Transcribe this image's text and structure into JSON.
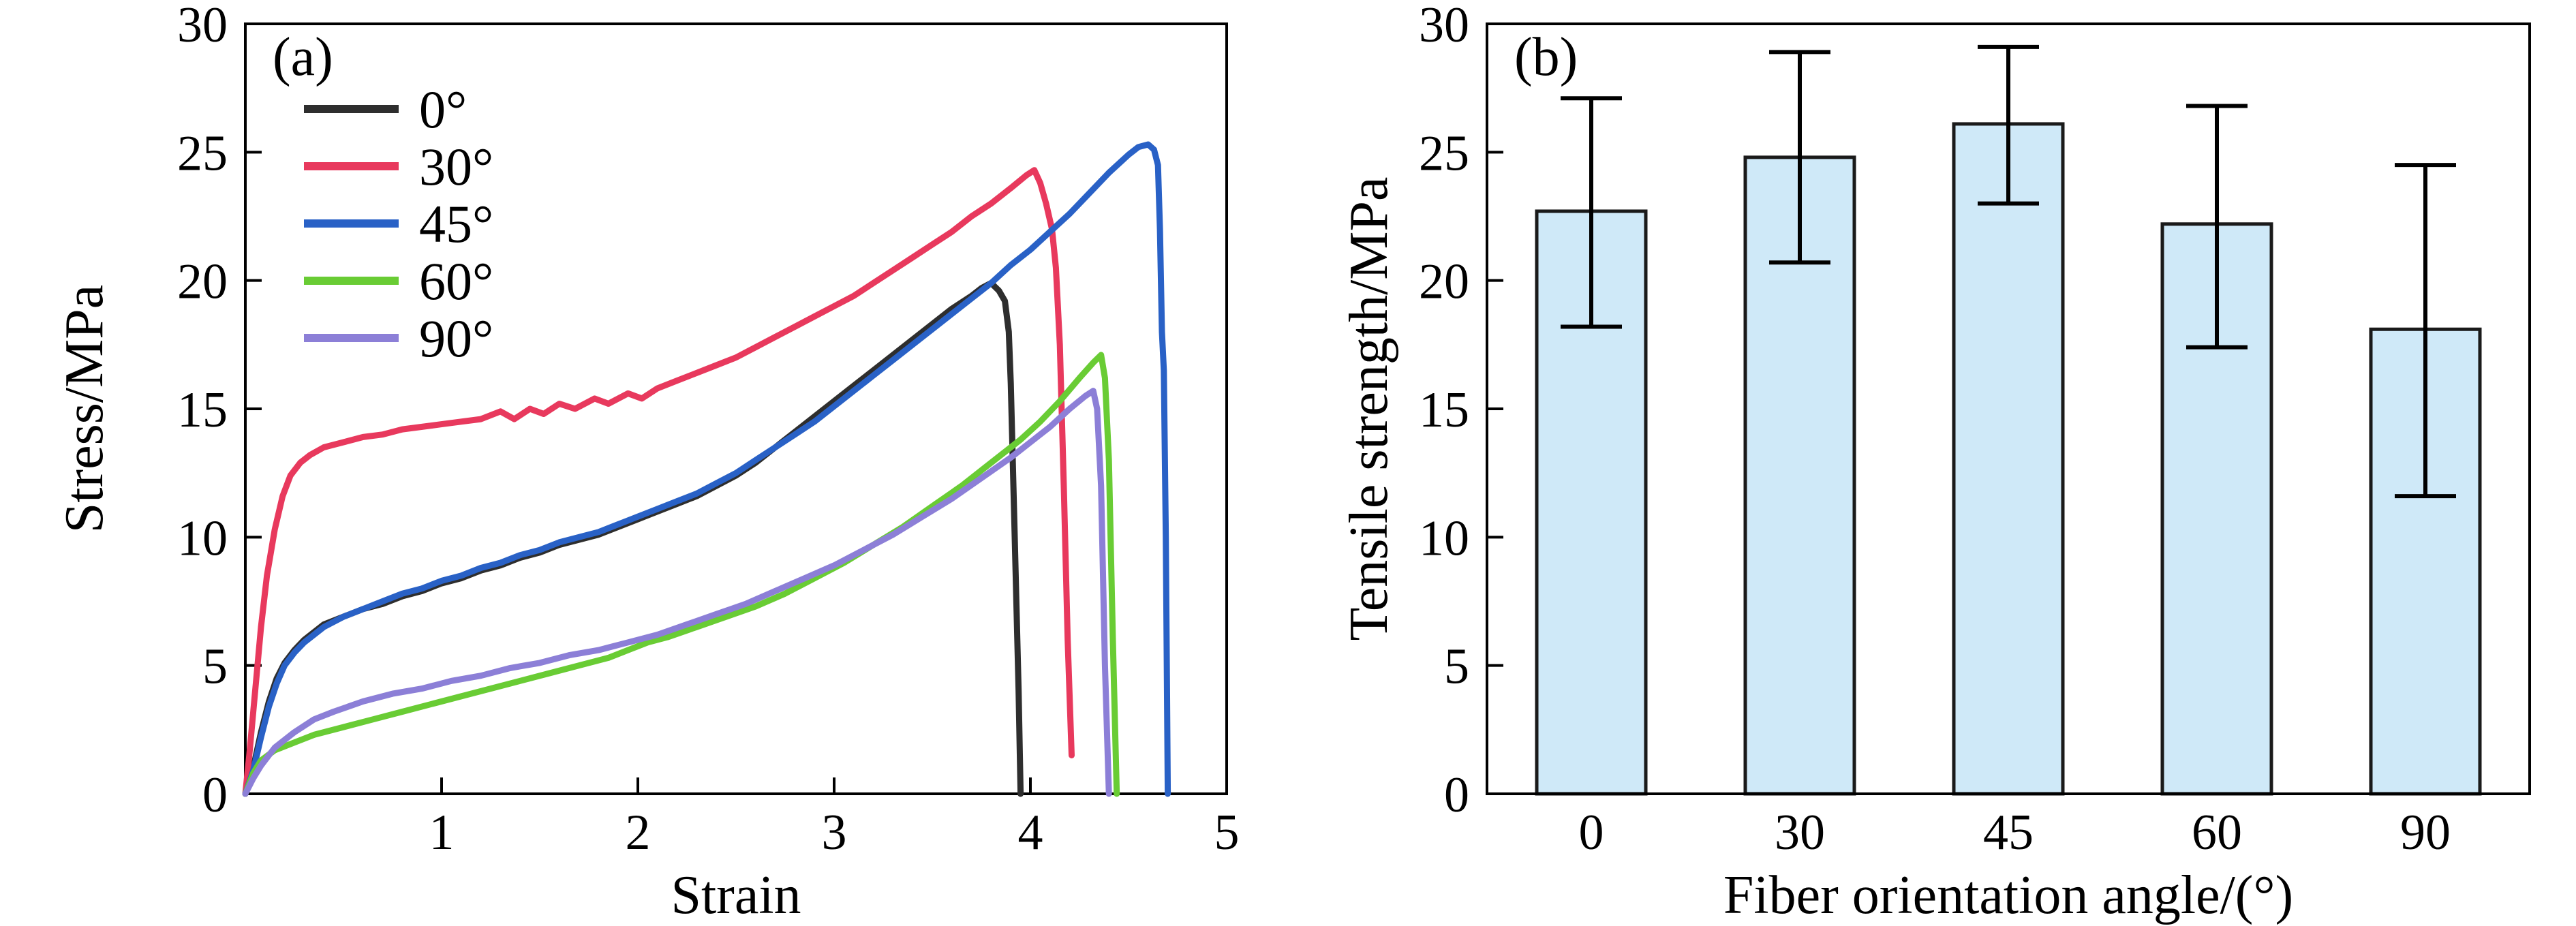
{
  "figure": {
    "background": "#ffffff",
    "frame_color": "#000000"
  },
  "chart_data": [
    {
      "type": "line",
      "panel_label": "(a)",
      "xlabel": "Strain",
      "ylabel": "Stress/MPa",
      "xlim": [
        0,
        5
      ],
      "ylim": [
        0,
        30
      ],
      "xticks": [
        1,
        2,
        3,
        4,
        5
      ],
      "yticks": [
        0,
        5,
        10,
        15,
        20,
        25,
        30
      ],
      "legend_position": "upper-left",
      "series": [
        {
          "name": "0°",
          "color": "#2e2e2e",
          "points": [
            [
              0,
              0
            ],
            [
              0.04,
              1.0
            ],
            [
              0.08,
              2.4
            ],
            [
              0.12,
              3.6
            ],
            [
              0.16,
              4.5
            ],
            [
              0.2,
              5.1
            ],
            [
              0.25,
              5.6
            ],
            [
              0.3,
              6.0
            ],
            [
              0.4,
              6.6
            ],
            [
              0.5,
              6.9
            ],
            [
              0.6,
              7.2
            ],
            [
              0.7,
              7.4
            ],
            [
              0.8,
              7.7
            ],
            [
              0.9,
              7.9
            ],
            [
              1.0,
              8.2
            ],
            [
              1.1,
              8.4
            ],
            [
              1.2,
              8.7
            ],
            [
              1.3,
              8.9
            ],
            [
              1.4,
              9.2
            ],
            [
              1.5,
              9.4
            ],
            [
              1.6,
              9.7
            ],
            [
              1.7,
              9.9
            ],
            [
              1.8,
              10.1
            ],
            [
              1.9,
              10.4
            ],
            [
              2.0,
              10.7
            ],
            [
              2.1,
              11.0
            ],
            [
              2.2,
              11.3
            ],
            [
              2.3,
              11.6
            ],
            [
              2.4,
              12.0
            ],
            [
              2.5,
              12.4
            ],
            [
              2.6,
              12.9
            ],
            [
              2.7,
              13.5
            ],
            [
              2.8,
              14.1
            ],
            [
              2.9,
              14.7
            ],
            [
              3.0,
              15.3
            ],
            [
              3.1,
              15.9
            ],
            [
              3.2,
              16.5
            ],
            [
              3.3,
              17.1
            ],
            [
              3.4,
              17.7
            ],
            [
              3.5,
              18.3
            ],
            [
              3.6,
              18.9
            ],
            [
              3.7,
              19.4
            ],
            [
              3.75,
              19.7
            ],
            [
              3.8,
              19.9
            ],
            [
              3.84,
              19.6
            ],
            [
              3.87,
              19.2
            ],
            [
              3.89,
              18.0
            ],
            [
              3.9,
              16.0
            ],
            [
              3.92,
              10.0
            ],
            [
              3.94,
              4.0
            ],
            [
              3.95,
              0
            ]
          ]
        },
        {
          "name": "30°",
          "color": "#e8395d",
          "points": [
            [
              0,
              0
            ],
            [
              0.02,
              1.5
            ],
            [
              0.05,
              4.0
            ],
            [
              0.08,
              6.5
            ],
            [
              0.11,
              8.5
            ],
            [
              0.15,
              10.3
            ],
            [
              0.19,
              11.6
            ],
            [
              0.23,
              12.4
            ],
            [
              0.28,
              12.9
            ],
            [
              0.33,
              13.2
            ],
            [
              0.4,
              13.5
            ],
            [
              0.5,
              13.7
            ],
            [
              0.6,
              13.9
            ],
            [
              0.7,
              14.0
            ],
            [
              0.8,
              14.2
            ],
            [
              0.9,
              14.3
            ],
            [
              1.0,
              14.4
            ],
            [
              1.1,
              14.5
            ],
            [
              1.2,
              14.6
            ],
            [
              1.3,
              14.9
            ],
            [
              1.37,
              14.6
            ],
            [
              1.45,
              15.0
            ],
            [
              1.52,
              14.8
            ],
            [
              1.6,
              15.2
            ],
            [
              1.68,
              15.0
            ],
            [
              1.78,
              15.4
            ],
            [
              1.85,
              15.2
            ],
            [
              1.95,
              15.6
            ],
            [
              2.02,
              15.4
            ],
            [
              2.1,
              15.8
            ],
            [
              2.2,
              16.1
            ],
            [
              2.3,
              16.4
            ],
            [
              2.4,
              16.7
            ],
            [
              2.5,
              17.0
            ],
            [
              2.6,
              17.4
            ],
            [
              2.7,
              17.8
            ],
            [
              2.8,
              18.2
            ],
            [
              2.9,
              18.6
            ],
            [
              3.0,
              19.0
            ],
            [
              3.1,
              19.4
            ],
            [
              3.2,
              19.9
            ],
            [
              3.3,
              20.4
            ],
            [
              3.4,
              20.9
            ],
            [
              3.5,
              21.4
            ],
            [
              3.6,
              21.9
            ],
            [
              3.7,
              22.5
            ],
            [
              3.8,
              23.0
            ],
            [
              3.9,
              23.6
            ],
            [
              3.98,
              24.1
            ],
            [
              4.02,
              24.3
            ],
            [
              4.05,
              23.8
            ],
            [
              4.08,
              23.0
            ],
            [
              4.11,
              22.0
            ],
            [
              4.13,
              20.5
            ],
            [
              4.15,
              17.5
            ],
            [
              4.17,
              12.0
            ],
            [
              4.19,
              6.0
            ],
            [
              4.21,
              1.5
            ]
          ]
        },
        {
          "name": "45°",
          "color": "#2961c6",
          "points": [
            [
              0,
              0
            ],
            [
              0.04,
              0.9
            ],
            [
              0.08,
              2.2
            ],
            [
              0.12,
              3.4
            ],
            [
              0.16,
              4.3
            ],
            [
              0.2,
              5.0
            ],
            [
              0.25,
              5.5
            ],
            [
              0.3,
              5.9
            ],
            [
              0.4,
              6.5
            ],
            [
              0.5,
              6.9
            ],
            [
              0.6,
              7.2
            ],
            [
              0.7,
              7.5
            ],
            [
              0.8,
              7.8
            ],
            [
              0.9,
              8.0
            ],
            [
              1.0,
              8.3
            ],
            [
              1.1,
              8.5
            ],
            [
              1.2,
              8.8
            ],
            [
              1.3,
              9.0
            ],
            [
              1.4,
              9.3
            ],
            [
              1.5,
              9.5
            ],
            [
              1.6,
              9.8
            ],
            [
              1.7,
              10.0
            ],
            [
              1.8,
              10.2
            ],
            [
              1.9,
              10.5
            ],
            [
              2.0,
              10.8
            ],
            [
              2.1,
              11.1
            ],
            [
              2.2,
              11.4
            ],
            [
              2.3,
              11.7
            ],
            [
              2.4,
              12.1
            ],
            [
              2.5,
              12.5
            ],
            [
              2.6,
              13.0
            ],
            [
              2.7,
              13.5
            ],
            [
              2.8,
              14.0
            ],
            [
              2.9,
              14.5
            ],
            [
              3.0,
              15.1
            ],
            [
              3.1,
              15.7
            ],
            [
              3.2,
              16.3
            ],
            [
              3.3,
              16.9
            ],
            [
              3.4,
              17.5
            ],
            [
              3.5,
              18.1
            ],
            [
              3.6,
              18.7
            ],
            [
              3.7,
              19.3
            ],
            [
              3.8,
              19.9
            ],
            [
              3.9,
              20.6
            ],
            [
              4.0,
              21.2
            ],
            [
              4.1,
              21.9
            ],
            [
              4.2,
              22.6
            ],
            [
              4.3,
              23.4
            ],
            [
              4.4,
              24.2
            ],
            [
              4.5,
              24.9
            ],
            [
              4.55,
              25.2
            ],
            [
              4.6,
              25.3
            ],
            [
              4.63,
              25.1
            ],
            [
              4.65,
              24.5
            ],
            [
              4.66,
              22.0
            ],
            [
              4.67,
              18.0
            ],
            [
              4.68,
              16.5
            ],
            [
              4.69,
              10.0
            ],
            [
              4.7,
              0
            ]
          ]
        },
        {
          "name": "60°",
          "color": "#69cc34",
          "points": [
            [
              0,
              0
            ],
            [
              0.04,
              0.8
            ],
            [
              0.08,
              1.3
            ],
            [
              0.15,
              1.7
            ],
            [
              0.25,
              2.0
            ],
            [
              0.35,
              2.3
            ],
            [
              0.5,
              2.6
            ],
            [
              0.65,
              2.9
            ],
            [
              0.8,
              3.2
            ],
            [
              0.95,
              3.5
            ],
            [
              1.1,
              3.8
            ],
            [
              1.25,
              4.1
            ],
            [
              1.4,
              4.4
            ],
            [
              1.55,
              4.7
            ],
            [
              1.7,
              5.0
            ],
            [
              1.85,
              5.3
            ],
            [
              1.95,
              5.6
            ],
            [
              2.05,
              5.9
            ],
            [
              2.15,
              6.1
            ],
            [
              2.3,
              6.5
            ],
            [
              2.45,
              6.9
            ],
            [
              2.6,
              7.3
            ],
            [
              2.75,
              7.8
            ],
            [
              2.9,
              8.4
            ],
            [
              3.05,
              9.0
            ],
            [
              3.2,
              9.7
            ],
            [
              3.35,
              10.4
            ],
            [
              3.5,
              11.2
            ],
            [
              3.65,
              12.0
            ],
            [
              3.8,
              12.9
            ],
            [
              3.95,
              13.8
            ],
            [
              4.05,
              14.5
            ],
            [
              4.15,
              15.3
            ],
            [
              4.25,
              16.2
            ],
            [
              4.32,
              16.8
            ],
            [
              4.36,
              17.1
            ],
            [
              4.38,
              16.2
            ],
            [
              4.4,
              13.0
            ],
            [
              4.42,
              6.0
            ],
            [
              4.44,
              0
            ]
          ]
        },
        {
          "name": "90°",
          "color": "#8c7fd7",
          "points": [
            [
              0,
              0
            ],
            [
              0.04,
              0.6
            ],
            [
              0.08,
              1.1
            ],
            [
              0.15,
              1.8
            ],
            [
              0.25,
              2.4
            ],
            [
              0.35,
              2.9
            ],
            [
              0.45,
              3.2
            ],
            [
              0.6,
              3.6
            ],
            [
              0.75,
              3.9
            ],
            [
              0.9,
              4.1
            ],
            [
              1.05,
              4.4
            ],
            [
              1.2,
              4.6
            ],
            [
              1.35,
              4.9
            ],
            [
              1.5,
              5.1
            ],
            [
              1.65,
              5.4
            ],
            [
              1.8,
              5.6
            ],
            [
              1.95,
              5.9
            ],
            [
              2.1,
              6.2
            ],
            [
              2.25,
              6.6
            ],
            [
              2.4,
              7.0
            ],
            [
              2.55,
              7.4
            ],
            [
              2.7,
              7.9
            ],
            [
              2.85,
              8.4
            ],
            [
              3.0,
              8.9
            ],
            [
              3.15,
              9.5
            ],
            [
              3.3,
              10.1
            ],
            [
              3.45,
              10.8
            ],
            [
              3.6,
              11.5
            ],
            [
              3.75,
              12.3
            ],
            [
              3.9,
              13.1
            ],
            [
              4.0,
              13.7
            ],
            [
              4.1,
              14.3
            ],
            [
              4.2,
              15.0
            ],
            [
              4.28,
              15.5
            ],
            [
              4.32,
              15.7
            ],
            [
              4.34,
              15.0
            ],
            [
              4.36,
              12.0
            ],
            [
              4.38,
              5.0
            ],
            [
              4.4,
              0
            ]
          ]
        }
      ]
    },
    {
      "type": "bar",
      "panel_label": "(b)",
      "xlabel": "Fiber orientation angle/(°)",
      "ylabel": "Tensile strength/MPa",
      "ylim": [
        0,
        30
      ],
      "yticks": [
        0,
        5,
        10,
        15,
        20,
        25,
        30
      ],
      "categories": [
        "0",
        "30",
        "45",
        "60",
        "90"
      ],
      "values": [
        22.7,
        24.8,
        26.1,
        22.2,
        18.1
      ],
      "error_low": [
        18.2,
        20.7,
        23.0,
        17.4,
        11.6
      ],
      "error_high": [
        27.1,
        28.9,
        29.1,
        26.8,
        24.5
      ],
      "bar_fill": "#cfe9f8",
      "bar_edge": "#1a1a1a",
      "error_color": "#000000"
    }
  ]
}
